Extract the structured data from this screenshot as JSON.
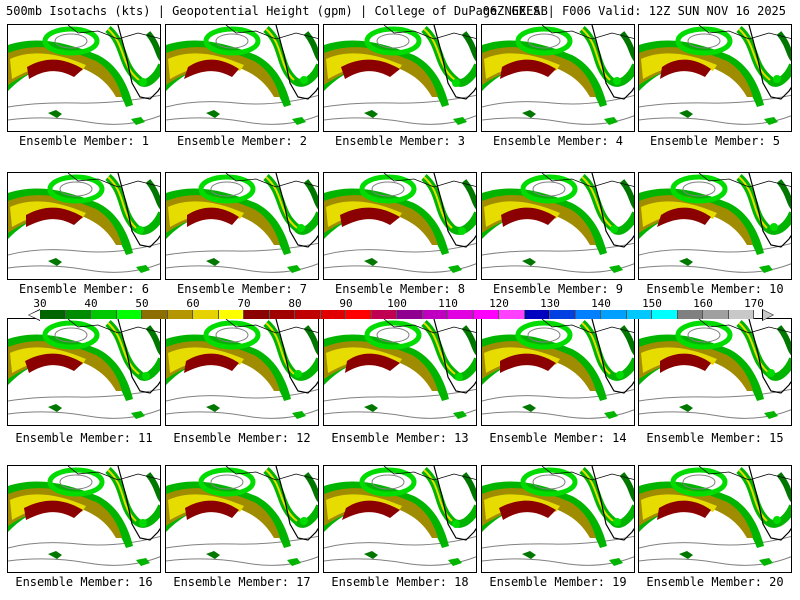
{
  "header": {
    "left": "500mb Isotachs (kts) | Geopotential Height (gpm) | College of DuPage NEXLAB",
    "right": "06Z GEFS | F006 Valid: 12Z SUN NOV 16 2025"
  },
  "members": [
    "Ensemble Member: 1",
    "Ensemble Member: 2",
    "Ensemble Member: 3",
    "Ensemble Member: 4",
    "Ensemble Member: 5",
    "Ensemble Member: 6",
    "Ensemble Member: 7",
    "Ensemble Member: 8",
    "Ensemble Member: 9",
    "Ensemble Member: 10",
    "Ensemble Member: 11",
    "Ensemble Member: 12",
    "Ensemble Member: 13",
    "Ensemble Member: 14",
    "Ensemble Member: 15",
    "Ensemble Member: 16",
    "Ensemble Member: 17",
    "Ensemble Member: 18",
    "Ensemble Member: 19",
    "Ensemble Member: 20"
  ],
  "colorbar": {
    "ticks": [
      "30",
      "40",
      "50",
      "60",
      "70",
      "80",
      "90",
      "100",
      "110",
      "120",
      "130",
      "140",
      "150",
      "160",
      "170"
    ],
    "colors": [
      "#006400",
      "#008c00",
      "#00c800",
      "#00ff00",
      "#8c6e00",
      "#b49600",
      "#e6d200",
      "#ffff00",
      "#8b0000",
      "#a00000",
      "#c00000",
      "#e00000",
      "#ff0000",
      "#c00050",
      "#900090",
      "#c000c0",
      "#e000e0",
      "#ff00ff",
      "#ff40ff",
      "#0000c0",
      "#0040e0",
      "#0080ff",
      "#00a0ff",
      "#00c8ff",
      "#00ffff",
      "#808080",
      "#a0a0a0",
      "#c8c8c8"
    ]
  },
  "map_colors": {
    "green_dark": "#007800",
    "green": "#00b400",
    "green_light": "#00dc00",
    "olive": "#a08c00",
    "yellow": "#e6dc00",
    "red_dark": "#8b0000",
    "gray_contour": "#808080"
  }
}
